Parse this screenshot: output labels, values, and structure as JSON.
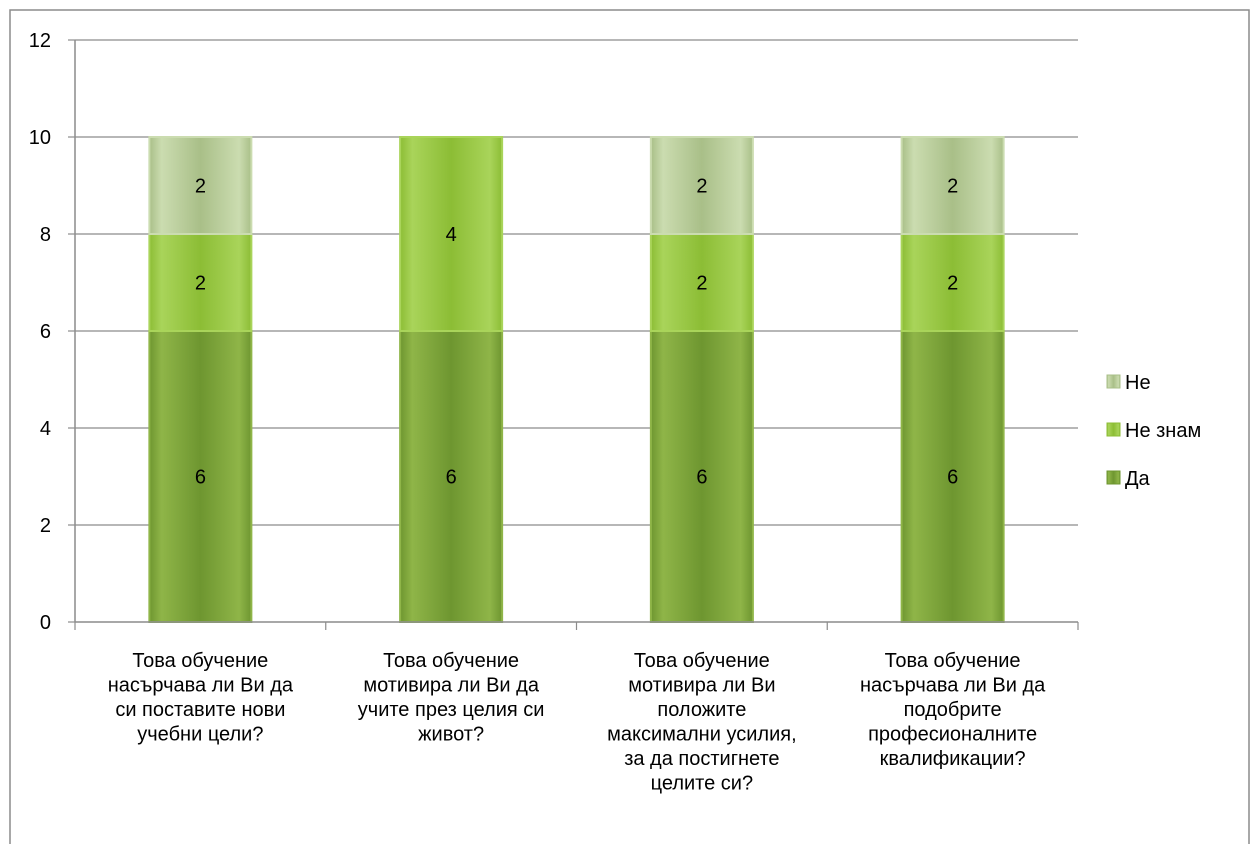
{
  "chart_data": {
    "type": "bar",
    "stacked": true,
    "categories": [
      "Това обучение насърчава ли Ви да си поставите нови учебни цели?",
      "Това обучение мотивира ли Ви да учите през целия си живот?",
      "Това обучение мотивира ли Ви положите максимални усилия, за да постигнете целите си?",
      "Това обучение насърчава ли Ви да подобрите професионалните квалификации?"
    ],
    "category_lines": [
      [
        "Това обучение",
        "насърчава ли Ви да",
        "си поставите нови",
        "учебни цели?"
      ],
      [
        "Това обучение",
        "мотивира ли Ви да",
        "учите през целия си",
        "живот?"
      ],
      [
        "Това обучение",
        "мотивира ли Ви",
        "положите",
        "максимални усилия,",
        "за да постигнете",
        "целите си?"
      ],
      [
        "Това обучение",
        "насърчава ли Ви да",
        "подобрите",
        "професионалните",
        "квалификации?"
      ]
    ],
    "series": [
      {
        "name": "Да",
        "values": [
          6,
          6,
          6,
          6
        ],
        "color": "#6e9630",
        "color_light": "#8fb548"
      },
      {
        "name": "Не знам",
        "values": [
          2,
          4,
          2,
          2
        ],
        "color": "#8cbd35",
        "color_light": "#a9d45a"
      },
      {
        "name": "Не",
        "values": [
          2,
          0,
          2,
          2
        ],
        "color": "#a9bf88",
        "color_light": "#cbdcb0"
      }
    ],
    "ylim": [
      0,
      12
    ],
    "yticks": [
      0,
      2,
      4,
      6,
      8,
      10,
      12
    ],
    "grid": true,
    "legend_position": "right",
    "legend_order": [
      "Не",
      "Не знам",
      "Да"
    ],
    "title": "",
    "xlabel": "",
    "ylabel": ""
  }
}
